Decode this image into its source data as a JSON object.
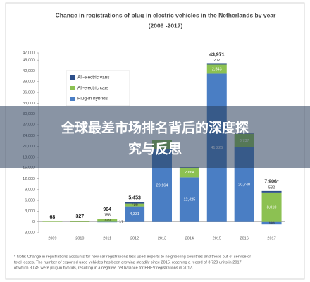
{
  "chart_data": {
    "type": "stacked_bar",
    "title": "Change in registrations of plug-in electric vehicles in the Netherlands by year",
    "subtitle": "(2009 -2017)",
    "categories": [
      "2009",
      "2010",
      "2011",
      "2012",
      "2013",
      "2014",
      "2015",
      "2016",
      "2017"
    ],
    "series": [
      {
        "name": "Plug-in hybrids",
        "color": "#4a7ec4",
        "values": [
          null,
          null,
          17,
          4331,
          20164,
          12425,
          41226,
          20740,
          -686
        ],
        "value_labels": [
          null,
          null,
          "17",
          "4,331",
          "20,164",
          "12,425",
          "41,226",
          "20,740",
          "-686"
        ]
      },
      {
        "name": "All-electric cars",
        "color": "#8cc152",
        "values": [
          68,
          327,
          729,
          786,
          2600,
          2664,
          2543,
          3737,
          8010
        ],
        "value_labels": [
          null,
          null,
          "729",
          "786",
          null,
          "2,664",
          "2,543",
          "3,737",
          "8,010"
        ]
      },
      {
        "name": "All-electric vans",
        "color": "#2d4f8a",
        "values": [
          null,
          null,
          158,
          336,
          100,
          89,
          202,
          100,
          582
        ],
        "value_labels": [
          null,
          null,
          "158",
          null,
          null,
          null,
          "202",
          null,
          "582"
        ]
      }
    ],
    "totals": [
      68,
      327,
      904,
      5453,
      null,
      null,
      43971,
      null,
      7906
    ],
    "total_labels": [
      "68",
      "327",
      "904",
      "5,453",
      null,
      null,
      "43,971",
      null,
      "7,906*"
    ],
    "ylim": [
      -3000,
      47000
    ],
    "yticks": [
      {
        "value": -3000,
        "label": "-3,000"
      },
      0,
      {
        "value": 3000,
        "label": "3,000"
      },
      {
        "value": 6000,
        "label": "6,000"
      },
      {
        "value": 9000,
        "label": "9,000"
      },
      {
        "value": 12000,
        "label": "12,000"
      },
      {
        "value": 15000,
        "label": "15,000"
      },
      {
        "value": 18000,
        "label": "18,000"
      },
      {
        "value": 21000,
        "label": "21,000"
      },
      {
        "value": 24000,
        "label": "24,000"
      },
      {
        "value": 27000,
        "label": "27,000"
      },
      {
        "value": 30000,
        "label": "30,000"
      },
      {
        "value": 33000,
        "label": "33,000"
      },
      {
        "value": 36000,
        "label": "36,000"
      },
      {
        "value": 39000,
        "label": "39,000"
      },
      {
        "value": 42000,
        "label": "42,000"
      },
      {
        "value": 45000,
        "label": "45,000"
      },
      {
        "value": 47000,
        "label": "47,000"
      }
    ],
    "grid": false,
    "legend": "upper-left",
    "footnote": [
      "* Note: Change in registrations accounts for new car registrations less used-exports to neighboring countries and those out-of-service or",
      "total losses. The number of exported used vehicles has been growing steadily since 2015, reaching a record of 3,729 units in 2017,",
      "of which 3,049 were plug-in hybrids, resulting in a negative net balance for PHEV registrations in 2017."
    ]
  },
  "overlay": {
    "headline": [
      "全球最差市场排名背后的深度探",
      "究与反思"
    ]
  }
}
